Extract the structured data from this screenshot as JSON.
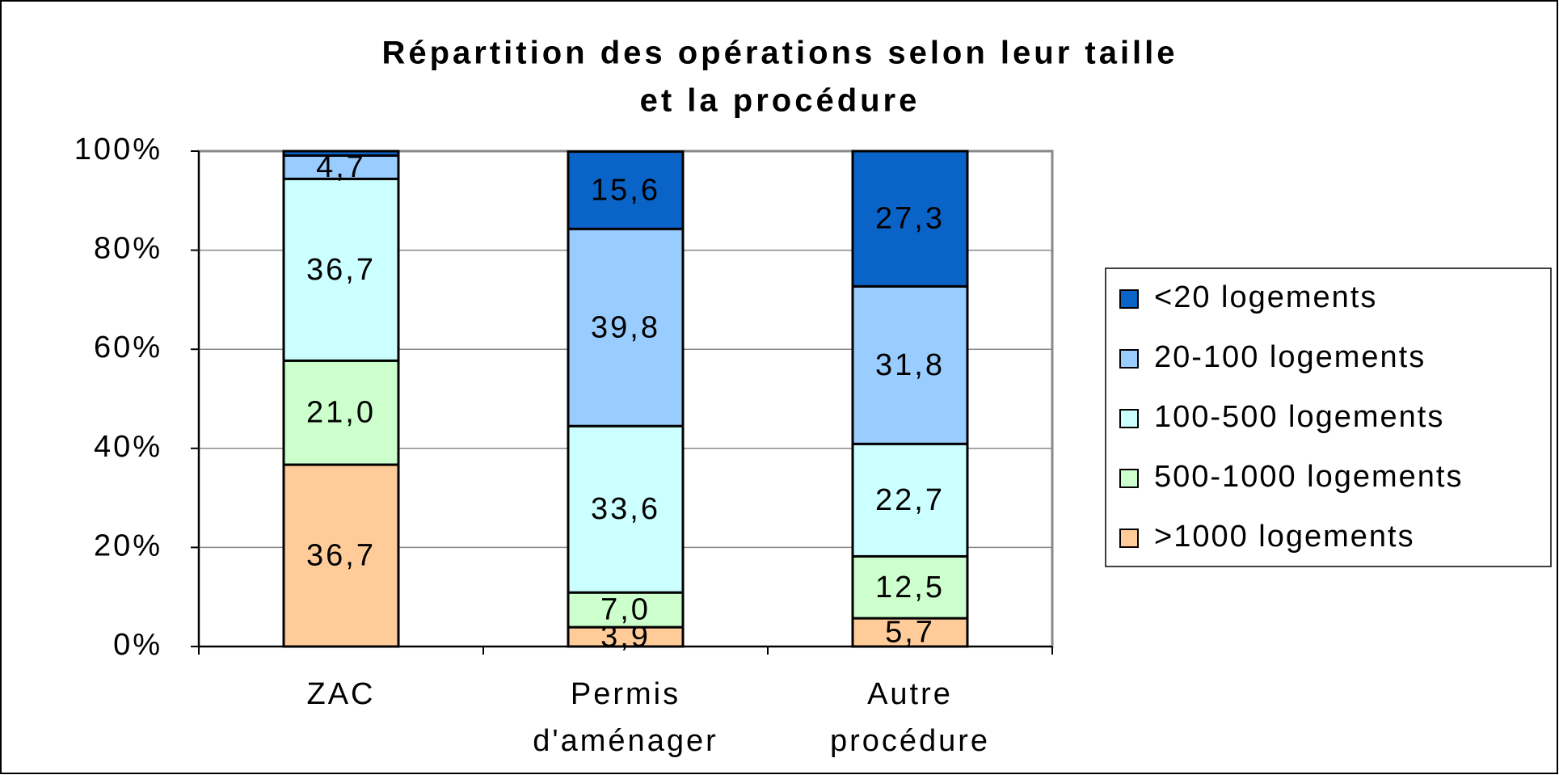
{
  "chart_data": {
    "type": "stacked-bar",
    "title": [
      "Répartition des opérations selon leur taille",
      "et la procédure"
    ],
    "categories": [
      "ZAC",
      "Permis d'aménager",
      "Autre procédure"
    ],
    "series": [
      {
        "name": ">1000 logements",
        "color": "#ffcc99",
        "values": [
          36.7,
          3.9,
          5.7
        ],
        "value_labels": [
          "36,7",
          "3,9",
          "5,7"
        ]
      },
      {
        "name": "500-1000 logements",
        "color": "#ccffcc",
        "values": [
          21.0,
          7.0,
          12.5
        ],
        "value_labels": [
          "21,0",
          "7,0",
          "12,5"
        ]
      },
      {
        "name": "100-500 logements",
        "color": "#ccffff",
        "values": [
          36.7,
          33.6,
          22.7
        ],
        "value_labels": [
          "36,7",
          "33,6",
          "22,7"
        ]
      },
      {
        "name": "20-100 logements",
        "color": "#99ccff",
        "values": [
          4.7,
          39.8,
          31.8
        ],
        "value_labels": [
          "4,7",
          "39,8",
          "31,8"
        ]
      },
      {
        "name": "<20 logements",
        "color": "#0a64c8",
        "values": [
          0.9,
          15.6,
          27.3
        ],
        "value_labels": [
          null,
          "15,6",
          "27,3"
        ]
      }
    ],
    "ylim": [
      0,
      100
    ],
    "yticks": [
      {
        "value": 0,
        "label": "0%"
      },
      {
        "value": 20,
        "label": "20%"
      },
      {
        "value": 40,
        "label": "40%"
      },
      {
        "value": 60,
        "label": "60%"
      },
      {
        "value": 80,
        "label": "80%"
      },
      {
        "value": 100,
        "label": "100%"
      }
    ],
    "grid": true,
    "legend": "right"
  }
}
